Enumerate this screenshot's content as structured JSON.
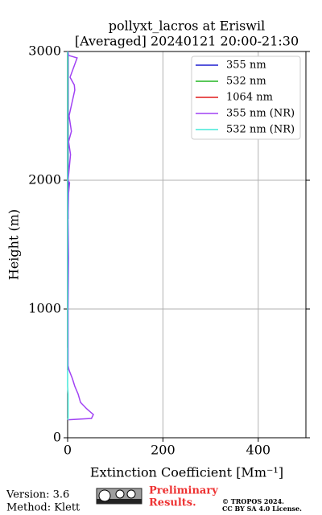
{
  "chart_data": {
    "type": "line",
    "title": [
      "pollyxt_lacros at Eriswil",
      "[Averaged] 20240121 20:00-21:30"
    ],
    "x_label": "Extinction Coefficient [Mm⁻¹]",
    "y_label": "Height (m)",
    "xlim": [
      0,
      500
    ],
    "xticks": [
      0,
      200,
      400
    ],
    "ylim": [
      0,
      3000
    ],
    "yticks": [
      0,
      1000,
      2000,
      3000
    ],
    "grid": true,
    "legend": "upper right",
    "y": [
      140,
      150,
      180,
      225,
      275,
      340,
      400,
      460,
      525,
      560,
      700,
      1000,
      1400,
      1700,
      1900,
      1980,
      2000,
      2200,
      2300,
      2380,
      2500,
      2700,
      2740,
      2800,
      2950,
      2970,
      3000
    ],
    "series": [
      {
        "name": "355 nm",
        "color": "#1f1fd0",
        "values": [
          null,
          null,
          null,
          null,
          null,
          null,
          null,
          null,
          null,
          null,
          null,
          null,
          null,
          1,
          1,
          2,
          1,
          1,
          1,
          1,
          1,
          1,
          1,
          1,
          1,
          1,
          1
        ]
      },
      {
        "name": "532 nm",
        "color": "#22b522",
        "values": [
          null,
          null,
          null,
          null,
          null,
          null,
          null,
          null,
          null,
          null,
          0,
          0,
          0,
          0,
          0,
          0,
          0,
          0,
          0,
          0,
          0,
          0,
          0,
          0,
          0,
          0,
          0
        ]
      },
      {
        "name": "1064 nm",
        "color": "#e01a1a",
        "values": [
          null,
          null,
          null,
          null,
          null,
          null,
          null,
          null,
          0,
          0,
          0,
          0,
          0,
          0,
          0,
          0,
          0,
          0,
          0,
          0,
          0,
          0,
          0,
          0,
          0,
          0,
          0
        ]
      },
      {
        "name": "355 nm (NR)",
        "color": "#a142f4",
        "values": [
          2,
          50,
          54,
          40,
          27,
          22,
          15,
          10,
          3,
          1,
          1,
          1,
          2,
          1,
          2,
          4,
          1,
          6,
          2,
          8,
          3,
          15,
          14,
          5,
          20,
          2,
          1
        ]
      },
      {
        "name": "532 nm (NR)",
        "color": "#44e8d8",
        "values": [
          0,
          1,
          1,
          1,
          1,
          1,
          0,
          0,
          0,
          0,
          0,
          0,
          0,
          0,
          0,
          0,
          0,
          0,
          0,
          0,
          0,
          0,
          0,
          0,
          0,
          0,
          0
        ]
      }
    ]
  },
  "footer": {
    "version": "Version: 3.6",
    "method": "Method: Klett",
    "preliminary": [
      "Preliminary",
      "Results."
    ],
    "copyright": [
      "© TROPOS 2024.",
      "CC BY SA 4.0 License."
    ]
  }
}
